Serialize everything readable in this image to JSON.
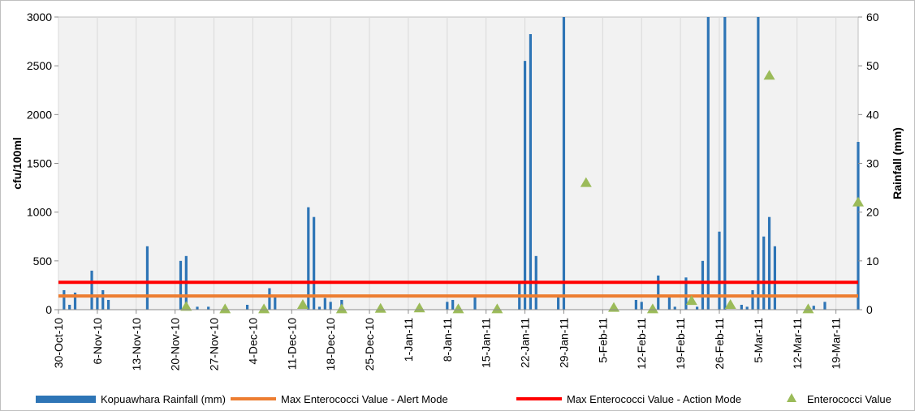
{
  "chart_data": {
    "type": "bar",
    "ylabel_left": "cfu/100ml",
    "ylabel_right": "Rainfall (mm)",
    "y_left_range": [
      0,
      3000
    ],
    "y_left_ticks": [
      "0",
      "500",
      "1000",
      "1500",
      "2000",
      "2500",
      "3000"
    ],
    "y_right_range": [
      0,
      60
    ],
    "y_right_ticks": [
      "0",
      "10",
      "20",
      "30",
      "40",
      "50",
      "60"
    ],
    "x_range": [
      "2010-10-30",
      "2011-03-23"
    ],
    "x_tick_labels": [
      {
        "date": "2010-10-30",
        "label": "30-Oct-10"
      },
      {
        "date": "2010-11-06",
        "label": "6-Nov-10"
      },
      {
        "date": "2010-11-13",
        "label": "13-Nov-10"
      },
      {
        "date": "2010-11-20",
        "label": "20-Nov-10"
      },
      {
        "date": "2010-11-27",
        "label": "27-Nov-10"
      },
      {
        "date": "2010-12-04",
        "label": "4-Dec-10"
      },
      {
        "date": "2010-12-11",
        "label": "11-Dec-10"
      },
      {
        "date": "2010-12-18",
        "label": "18-Dec-10"
      },
      {
        "date": "2010-12-25",
        "label": "25-Dec-10"
      },
      {
        "date": "2011-01-01",
        "label": "1-Jan-11"
      },
      {
        "date": "2011-01-08",
        "label": "8-Jan-11"
      },
      {
        "date": "2011-01-15",
        "label": "15-Jan-11"
      },
      {
        "date": "2011-01-22",
        "label": "22-Jan-11"
      },
      {
        "date": "2011-01-29",
        "label": "29-Jan-11"
      },
      {
        "date": "2011-02-05",
        "label": "5-Feb-11"
      },
      {
        "date": "2011-02-12",
        "label": "12-Feb-11"
      },
      {
        "date": "2011-02-19",
        "label": "19-Feb-11"
      },
      {
        "date": "2011-02-26",
        "label": "26-Feb-11"
      },
      {
        "date": "2011-03-05",
        "label": "5-Mar-11"
      },
      {
        "date": "2011-03-12",
        "label": "12-Mar-11"
      },
      {
        "date": "2011-03-19",
        "label": "19-Mar-11"
      }
    ],
    "grid": "vertical lines at x ticks",
    "legend_position": "bottom",
    "series": [
      {
        "name": "Kopuawhara Rainfall (mm)",
        "type": "bar",
        "axis": "right",
        "color": "#2e75b6",
        "points": [
          {
            "date": "2010-10-31",
            "value": 4
          },
          {
            "date": "2010-11-01",
            "value": 1
          },
          {
            "date": "2010-11-02",
            "value": 3.5
          },
          {
            "date": "2010-11-05",
            "value": 8
          },
          {
            "date": "2010-11-06",
            "value": 2.6
          },
          {
            "date": "2010-11-07",
            "value": 4
          },
          {
            "date": "2010-11-08",
            "value": 2
          },
          {
            "date": "2010-11-15",
            "value": 13
          },
          {
            "date": "2010-11-21",
            "value": 10
          },
          {
            "date": "2010-11-22",
            "value": 11
          },
          {
            "date": "2010-11-24",
            "value": 0.6
          },
          {
            "date": "2010-11-26",
            "value": 0.6
          },
          {
            "date": "2010-12-03",
            "value": 1
          },
          {
            "date": "2010-12-07",
            "value": 4.4
          },
          {
            "date": "2010-12-08",
            "value": 2.6
          },
          {
            "date": "2010-12-14",
            "value": 21
          },
          {
            "date": "2010-12-15",
            "value": 19
          },
          {
            "date": "2010-12-16",
            "value": 0.6
          },
          {
            "date": "2010-12-17",
            "value": 2.4
          },
          {
            "date": "2010-12-18",
            "value": 1.6
          },
          {
            "date": "2010-12-20",
            "value": 2
          },
          {
            "date": "2011-01-08",
            "value": 1.6
          },
          {
            "date": "2011-01-09",
            "value": 2
          },
          {
            "date": "2011-01-13",
            "value": 3
          },
          {
            "date": "2011-01-21",
            "value": 5.4
          },
          {
            "date": "2011-01-22",
            "value": 51
          },
          {
            "date": "2011-01-23",
            "value": 56.5
          },
          {
            "date": "2011-01-24",
            "value": 11
          },
          {
            "date": "2011-01-28",
            "value": 3
          },
          {
            "date": "2011-01-29",
            "value": 60
          },
          {
            "date": "2011-02-11",
            "value": 2
          },
          {
            "date": "2011-02-12",
            "value": 1.6
          },
          {
            "date": "2011-02-15",
            "value": 7
          },
          {
            "date": "2011-02-17",
            "value": 3
          },
          {
            "date": "2011-02-18",
            "value": 0.6
          },
          {
            "date": "2011-02-20",
            "value": 6.6
          },
          {
            "date": "2011-02-22",
            "value": 0.6
          },
          {
            "date": "2011-02-23",
            "value": 10
          },
          {
            "date": "2011-02-24",
            "value": 60
          },
          {
            "date": "2011-02-26",
            "value": 16
          },
          {
            "date": "2011-02-27",
            "value": 60
          },
          {
            "date": "2011-03-02",
            "value": 1
          },
          {
            "date": "2011-03-03",
            "value": 0.6
          },
          {
            "date": "2011-03-04",
            "value": 4
          },
          {
            "date": "2011-03-05",
            "value": 60
          },
          {
            "date": "2011-03-06",
            "value": 15
          },
          {
            "date": "2011-03-07",
            "value": 19
          },
          {
            "date": "2011-03-08",
            "value": 13
          },
          {
            "date": "2011-03-14",
            "value": 0.6
          },
          {
            "date": "2011-03-15",
            "value": 0.8
          },
          {
            "date": "2011-03-17",
            "value": 1.6
          },
          {
            "date": "2011-03-23",
            "value": 34.4
          }
        ]
      },
      {
        "name": "Max Enterococci Value - Alert Mode",
        "type": "line",
        "axis": "left",
        "color": "#ed7d31",
        "value": 140
      },
      {
        "name": "Max Enterococci Value - Action Mode",
        "type": "line",
        "axis": "left",
        "color": "#ff0000",
        "value": 280
      },
      {
        "name": "Enterococci Value",
        "type": "scatter",
        "axis": "left",
        "color": "#9bbb59",
        "points": [
          {
            "date": "2010-11-22",
            "value": 30
          },
          {
            "date": "2010-11-29",
            "value": 5
          },
          {
            "date": "2010-12-06",
            "value": 5
          },
          {
            "date": "2010-12-13",
            "value": 50
          },
          {
            "date": "2010-12-20",
            "value": 5
          },
          {
            "date": "2010-12-27",
            "value": 10
          },
          {
            "date": "2011-01-03",
            "value": 15
          },
          {
            "date": "2011-01-10",
            "value": 5
          },
          {
            "date": "2011-01-17",
            "value": 5
          },
          {
            "date": "2011-02-02",
            "value": 1300
          },
          {
            "date": "2011-02-07",
            "value": 20
          },
          {
            "date": "2011-02-14",
            "value": 5
          },
          {
            "date": "2011-02-21",
            "value": 90
          },
          {
            "date": "2011-02-28",
            "value": 50
          },
          {
            "date": "2011-03-07",
            "value": 2400
          },
          {
            "date": "2011-03-14",
            "value": 5
          },
          {
            "date": "2011-03-23",
            "value": 1100
          }
        ]
      }
    ]
  }
}
